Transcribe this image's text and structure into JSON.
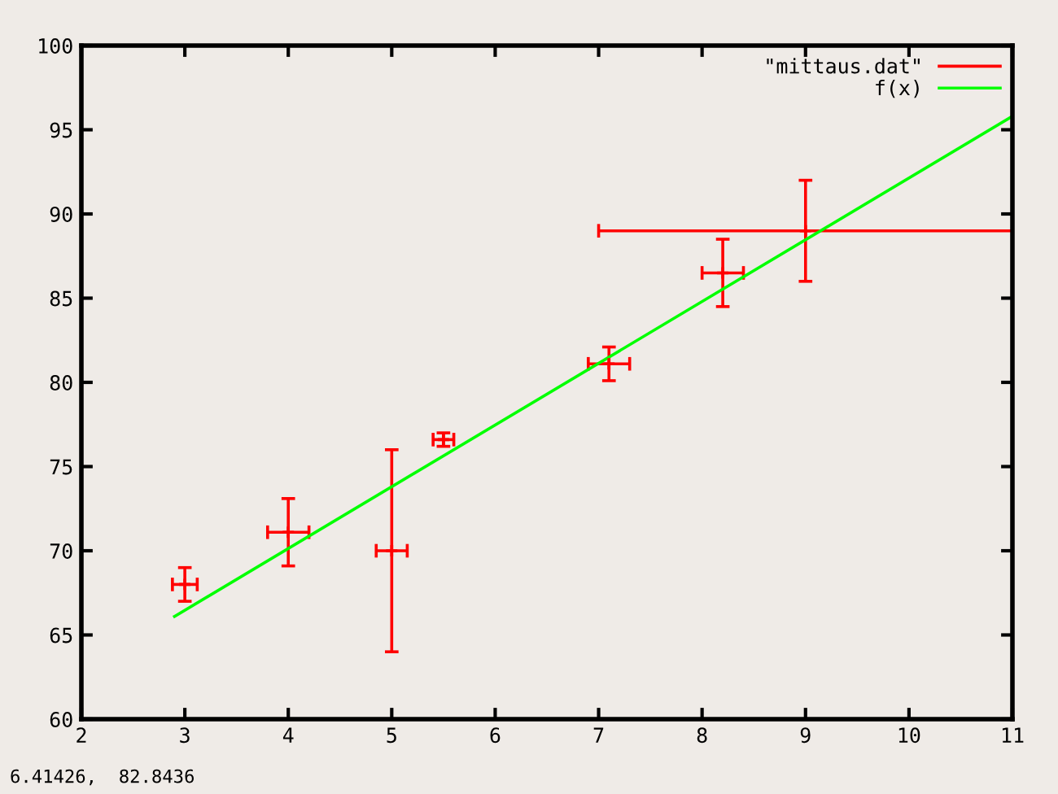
{
  "chart_data": {
    "type": "scatter",
    "series": [
      {
        "name": "\"mittaus.dat\"",
        "color": "#ff0000",
        "marker": "cross",
        "x": [
          3,
          4,
          5,
          5.5,
          7.1,
          8.2,
          9
        ],
        "values": [
          68,
          71.1,
          70,
          76.6,
          81.1,
          86.5,
          89
        ],
        "errors": [
          1,
          2,
          6,
          0.4,
          1,
          2,
          3
        ],
        "xerrors": [
          0.12,
          0.2,
          0.15,
          0.1,
          0.2,
          0.2,
          2
        ]
      },
      {
        "name": "f(x)",
        "type": "line",
        "color": "#00ff00",
        "marker": "none",
        "x": [
          2.9,
          11
        ],
        "values": [
          66.1,
          95.8
        ]
      }
    ],
    "xlim": [
      2,
      11
    ],
    "xticks": [
      2,
      3,
      4,
      5,
      6,
      7,
      8,
      9,
      10,
      11
    ],
    "ylim": [
      60,
      100
    ],
    "yticks": [
      60,
      65,
      70,
      75,
      80,
      85,
      90,
      95,
      100
    ],
    "grid": false,
    "legend": "top right",
    "annotations": [
      "6.41426,  82.8436"
    ]
  }
}
